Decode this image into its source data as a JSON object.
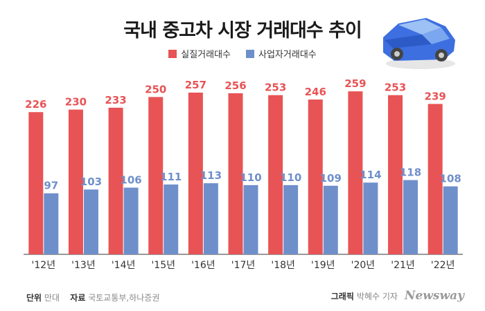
{
  "chart_data": {
    "type": "bar",
    "title": "국내 중고차 시장 거래대수 추이",
    "categories": [
      "'12년",
      "'13년",
      "'14년",
      "'15년",
      "'16년",
      "'17년",
      "'18년",
      "'19년",
      "'20년",
      "'21년",
      "'22년"
    ],
    "series": [
      {
        "name": "실질거래대수",
        "color": "#e85355",
        "values": [
          226,
          230,
          233,
          250,
          257,
          256,
          253,
          246,
          259,
          253,
          239
        ]
      },
      {
        "name": "사업자거래대수",
        "color": "#6f8fcb",
        "values": [
          97,
          103,
          106,
          111,
          113,
          110,
          110,
          109,
          114,
          118,
          108
        ]
      }
    ],
    "ylim": [
      0,
      285
    ],
    "xlabel": "",
    "ylabel": ""
  },
  "footer": {
    "unit_label": "단위",
    "unit_value": "만대",
    "source_label": "자료",
    "source_value": "국토교통부,하나증권",
    "credit_label": "그래픽",
    "credit_value": "박혜수 기자",
    "brand": "Newsway"
  }
}
